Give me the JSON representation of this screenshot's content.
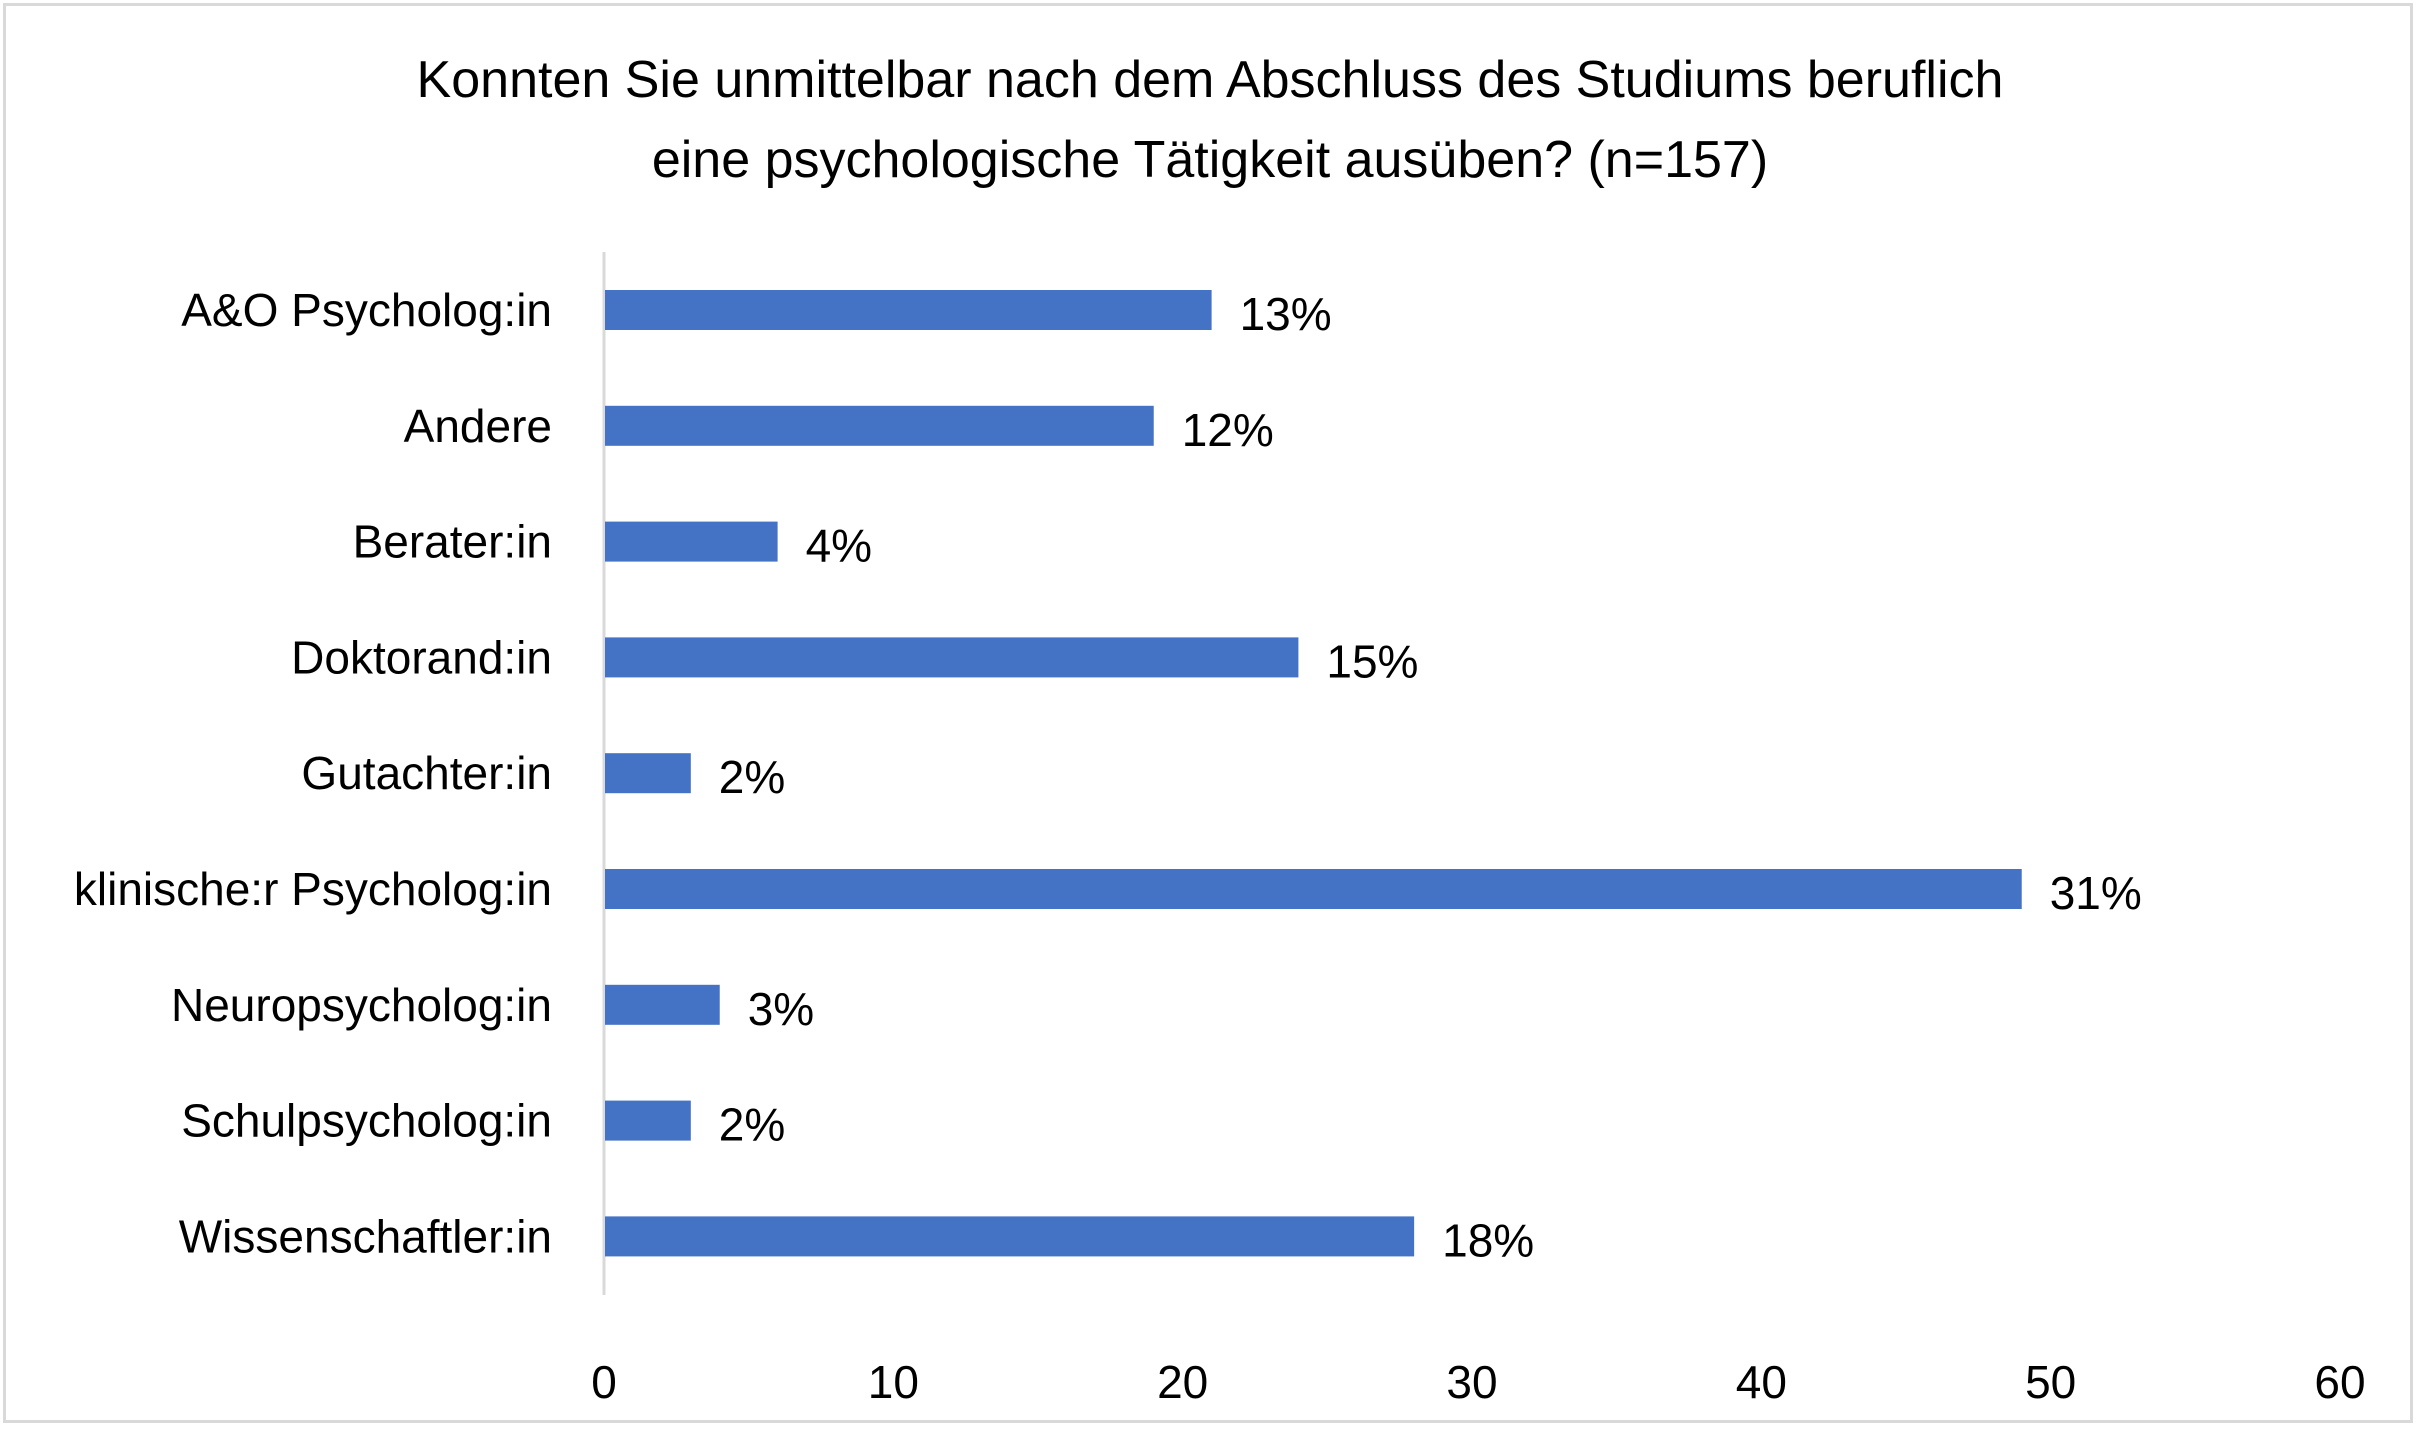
{
  "chart_data": {
    "type": "bar",
    "orientation": "horizontal",
    "title_lines": [
      "Konnten Sie unmittelbar nach dem Abschluss des Studiums beruflich",
      "eine psychologische Tätigkeit ausüben? (n=157)"
    ],
    "categories": [
      "A&O Psycholog:in",
      "Andere",
      "Berater:in",
      "Doktorand:in",
      "Gutachter:in",
      "klinische:r Psycholog:in",
      "Neuropsycholog:in",
      "Schulpsycholog:in",
      "Wissenschaftler:in"
    ],
    "values": [
      21,
      19,
      6,
      24,
      3,
      49,
      4,
      3,
      28
    ],
    "data_labels": [
      "13%",
      "12%",
      "4%",
      "15%",
      "2%",
      "31%",
      "3%",
      "2%",
      "18%"
    ],
    "xlim": [
      0,
      60
    ],
    "xticks": [
      "0",
      "10",
      "20",
      "30",
      "40",
      "50",
      "60"
    ],
    "xlabel": "",
    "ylabel": "",
    "grid": false,
    "legend": "none",
    "bar_color": "#4472c4"
  }
}
